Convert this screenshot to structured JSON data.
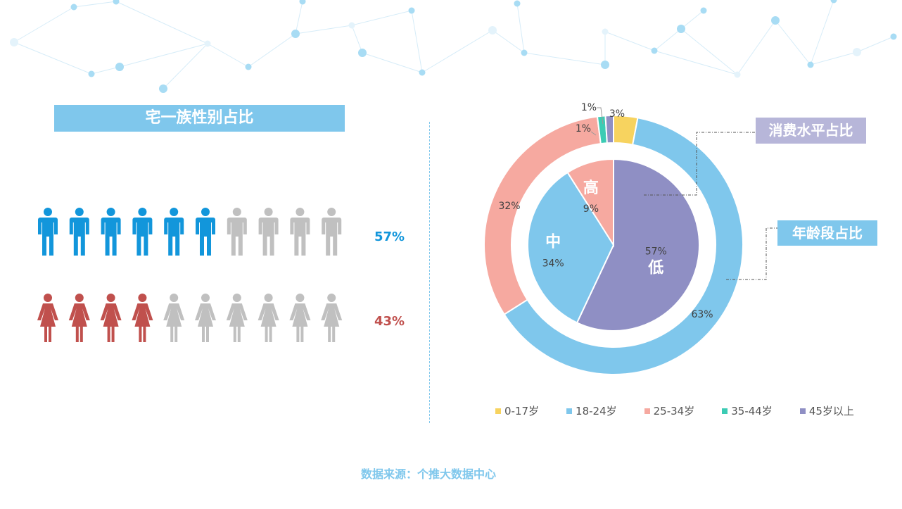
{
  "gender": {
    "title": "宅一族性别占比",
    "male_pct": "57%",
    "female_pct": "43%",
    "male_color": "#1296db",
    "female_color": "#c0504d",
    "inactive_color": "#c0c0c0",
    "icons_per_row": 10,
    "male_filled": 6,
    "female_filled": 4
  },
  "callouts": {
    "consumption": "消费水平占比",
    "age": "年龄段占比"
  },
  "source": "数据来源：个推大数据中心",
  "chart_data": [
    {
      "type": "pie",
      "title": "年龄段占比",
      "categories": [
        "0-17岁",
        "18-24岁",
        "25-34岁",
        "35-44岁",
        "45岁以上"
      ],
      "values": [
        3,
        63,
        32,
        1,
        1
      ],
      "labels": [
        "3%",
        "63%",
        "32%",
        "1%",
        "1%"
      ],
      "colors": [
        "#f7d35f",
        "#7fc7ec",
        "#f6a9a0",
        "#3ccbb4",
        "#8f8fc4"
      ],
      "legend_position": "bottom"
    },
    {
      "type": "pie",
      "title": "消费水平占比",
      "categories": [
        "低",
        "中",
        "高"
      ],
      "values": [
        57,
        34,
        9
      ],
      "labels": [
        "57%",
        "34%",
        "9%"
      ],
      "colors": [
        "#8f8fc4",
        "#7fc7ec",
        "#f6a9a0"
      ]
    }
  ]
}
